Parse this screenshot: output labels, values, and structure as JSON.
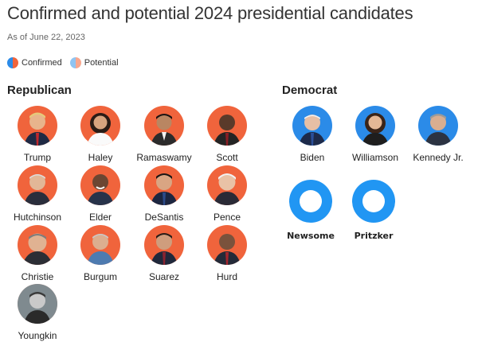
{
  "header": {
    "title": "Confirmed and potential 2024 presidential candidates",
    "subtitle": "As of June 22, 2023"
  },
  "legend": {
    "confirmed_label": "Confirmed",
    "potential_label": "Potential"
  },
  "colors": {
    "republican_confirmed": "#f0643c",
    "republican_potential": "#f8a78e",
    "democrat_confirmed": "#2b8be8",
    "democrat_potential": "#2196f3"
  },
  "republican": {
    "label": "Republican",
    "candidates": [
      {
        "name": "Trump",
        "status": "confirmed"
      },
      {
        "name": "Haley",
        "status": "confirmed"
      },
      {
        "name": "Ramaswamy",
        "status": "confirmed"
      },
      {
        "name": "Scott",
        "status": "confirmed"
      },
      {
        "name": "Hutchinson",
        "status": "confirmed"
      },
      {
        "name": "Elder",
        "status": "confirmed"
      },
      {
        "name": "DeSantis",
        "status": "confirmed"
      },
      {
        "name": "Pence",
        "status": "confirmed"
      },
      {
        "name": "Christie",
        "status": "confirmed"
      },
      {
        "name": "Burgum",
        "status": "confirmed"
      },
      {
        "name": "Suarez",
        "status": "confirmed"
      },
      {
        "name": "Hurd",
        "status": "confirmed"
      },
      {
        "name": "Youngkin",
        "status": "potential"
      }
    ]
  },
  "democrat": {
    "label": "Democrat",
    "candidates": [
      {
        "name": "Biden",
        "status": "confirmed"
      },
      {
        "name": "Williamson",
        "status": "confirmed"
      },
      {
        "name": "Kennedy Jr.",
        "status": "confirmed"
      },
      {
        "name": "Newsome",
        "status": "potential"
      },
      {
        "name": "Pritzker",
        "status": "potential"
      }
    ]
  }
}
